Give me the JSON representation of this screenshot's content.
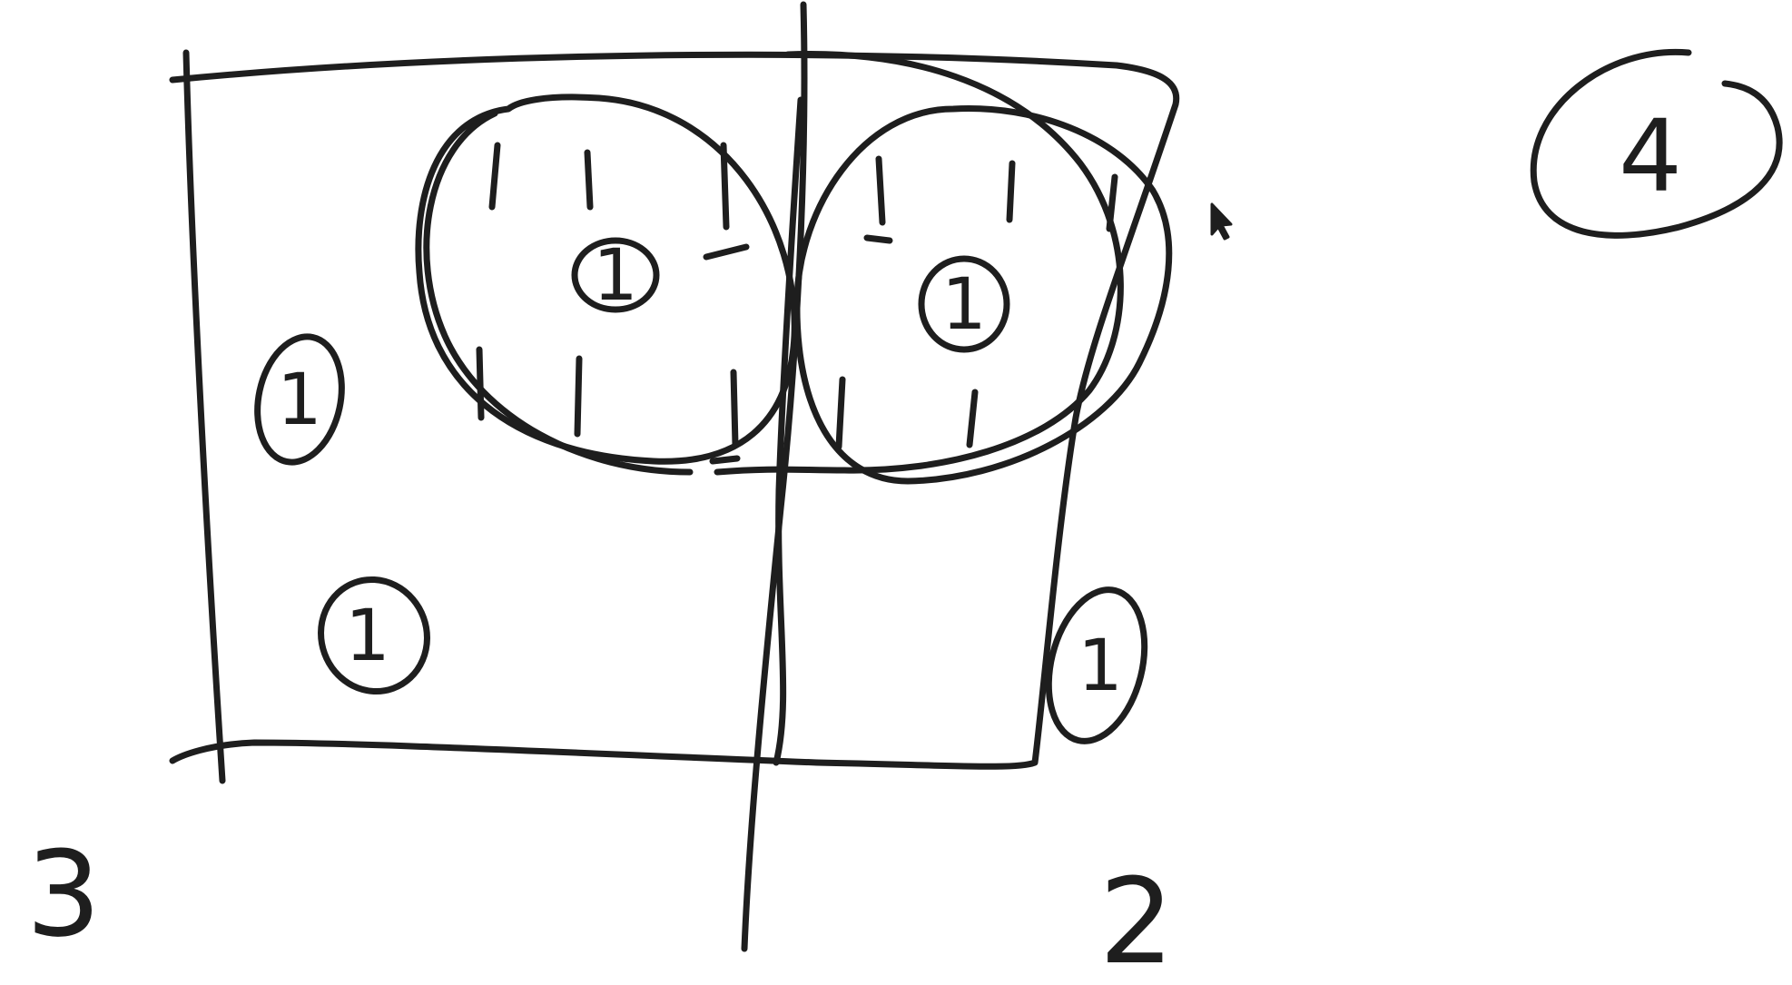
{
  "canvas": {
    "background": "#ffffff",
    "ink_color": "#1e1e1e"
  },
  "labels": {
    "region_left_outside": "3",
    "region_right_outside": "2",
    "region_top_right_circled": "4"
  },
  "cells": {
    "inside_box_left_upper": "1",
    "inside_box_left_lower": "1",
    "inside_box_right_lower": "1",
    "inside_left_ellipse": "1",
    "inside_right_ellipse": "1"
  },
  "cursor": {
    "icon": "mouse-pointer-icon"
  }
}
